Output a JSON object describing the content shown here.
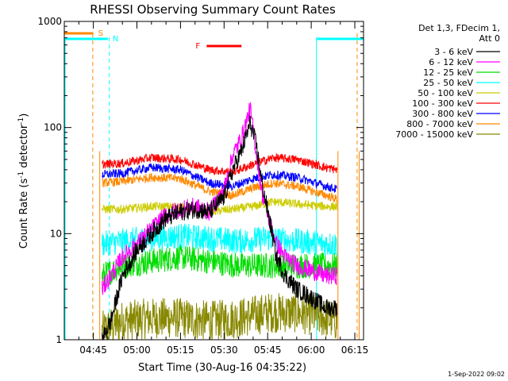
{
  "chart_data": {
    "type": "line",
    "title": "RHESSI Observing Summary Count Rates",
    "xlabel": "Start Time (30-Aug-16 04:35:22)",
    "ylabel": "Count Rate (s⁻¹ detector⁻¹)",
    "ylabel_main": "Count Rate (s",
    "ylabel_sup1": "-1",
    "ylabel_mid": " detector",
    "ylabel_sup2": "-1",
    "ylabel_end": ")",
    "yscale": "log",
    "ylim": [
      1,
      1000
    ],
    "xlim_minutes": [
      0,
      103
    ],
    "x_ticks": [
      {
        "t": 10,
        "label": "04:45"
      },
      {
        "t": 25,
        "label": "05:00"
      },
      {
        "t": 40,
        "label": "05:15"
      },
      {
        "t": 55,
        "label": "05:30"
      },
      {
        "t": 70,
        "label": "05:45"
      },
      {
        "t": 85,
        "label": "06:00"
      },
      {
        "t": 100,
        "label": "06:15"
      }
    ],
    "y_ticks": [
      {
        "v": 1,
        "label": "1"
      },
      {
        "v": 10,
        "label": "10"
      },
      {
        "v": 100,
        "label": "100"
      },
      {
        "v": 1000,
        "label": "1000"
      }
    ],
    "legend_header": [
      "Det 1,3, FDecim 1,",
      "Att 0"
    ],
    "series": [
      {
        "name": "3 - 6 keV",
        "color": "#000000",
        "values": [
          [
            13,
            1
          ],
          [
            16,
            1.5
          ],
          [
            20,
            4
          ],
          [
            25,
            7
          ],
          [
            30,
            10
          ],
          [
            35,
            14
          ],
          [
            40,
            16
          ],
          [
            45,
            17
          ],
          [
            50,
            16
          ],
          [
            55,
            22
          ],
          [
            58,
            40
          ],
          [
            61,
            60
          ],
          [
            64,
            110
          ],
          [
            66,
            70
          ],
          [
            68,
            30
          ],
          [
            71,
            12
          ],
          [
            73,
            6
          ],
          [
            76,
            4
          ],
          [
            80,
            3
          ],
          [
            85,
            2.5
          ],
          [
            90,
            2
          ],
          [
            94,
            2
          ]
        ]
      },
      {
        "name": "6 - 12 keV",
        "color": "#ff00ff",
        "values": [
          [
            13,
            3
          ],
          [
            16,
            4
          ],
          [
            20,
            6
          ],
          [
            25,
            8
          ],
          [
            30,
            11
          ],
          [
            35,
            15
          ],
          [
            40,
            17
          ],
          [
            45,
            18
          ],
          [
            50,
            16
          ],
          [
            55,
            26
          ],
          [
            58,
            55
          ],
          [
            61,
            80
          ],
          [
            64,
            150
          ],
          [
            66,
            60
          ],
          [
            68,
            25
          ],
          [
            71,
            12
          ],
          [
            73,
            8
          ],
          [
            76,
            6
          ],
          [
            80,
            5
          ],
          [
            85,
            4.5
          ],
          [
            90,
            4
          ],
          [
            94,
            4
          ]
        ]
      },
      {
        "name": "12 - 25 keV",
        "color": "#00dd00",
        "values": [
          [
            13,
            4
          ],
          [
            20,
            5
          ],
          [
            30,
            5.5
          ],
          [
            40,
            6
          ],
          [
            50,
            5.5
          ],
          [
            60,
            5
          ],
          [
            70,
            5
          ],
          [
            80,
            5
          ],
          [
            90,
            5
          ],
          [
            94,
            5
          ]
        ]
      },
      {
        "name": "25 - 50 keV",
        "color": "#00ffff",
        "values": [
          [
            13,
            8
          ],
          [
            20,
            8.5
          ],
          [
            30,
            9
          ],
          [
            40,
            9.5
          ],
          [
            50,
            9
          ],
          [
            60,
            8.5
          ],
          [
            70,
            9
          ],
          [
            80,
            8.5
          ],
          [
            90,
            8
          ],
          [
            94,
            8
          ]
        ]
      },
      {
        "name": "50 - 100 keV",
        "color": "#cccc00",
        "values": [
          [
            13,
            17
          ],
          [
            20,
            17
          ],
          [
            30,
            18
          ],
          [
            40,
            18
          ],
          [
            50,
            16
          ],
          [
            58,
            17
          ],
          [
            65,
            18
          ],
          [
            72,
            20
          ],
          [
            80,
            19
          ],
          [
            90,
            18
          ],
          [
            94,
            18
          ]
        ]
      },
      {
        "name": "100 - 300 keV",
        "color": "#ff0000",
        "values": [
          [
            13,
            45
          ],
          [
            20,
            46
          ],
          [
            30,
            52
          ],
          [
            40,
            50
          ],
          [
            50,
            40
          ],
          [
            58,
            38
          ],
          [
            65,
            45
          ],
          [
            72,
            52
          ],
          [
            80,
            50
          ],
          [
            90,
            42
          ],
          [
            94,
            40
          ]
        ]
      },
      {
        "name": "300 - 800 keV",
        "color": "#0000ff",
        "values": [
          [
            13,
            36
          ],
          [
            20,
            37
          ],
          [
            30,
            42
          ],
          [
            40,
            40
          ],
          [
            50,
            30
          ],
          [
            58,
            28
          ],
          [
            65,
            33
          ],
          [
            72,
            36
          ],
          [
            80,
            34
          ],
          [
            90,
            28
          ],
          [
            94,
            26
          ]
        ]
      },
      {
        "name": "800 - 7000 keV",
        "color": "#ff8800",
        "values": [
          [
            13,
            30
          ],
          [
            20,
            31
          ],
          [
            30,
            34
          ],
          [
            40,
            33
          ],
          [
            50,
            25
          ],
          [
            58,
            23
          ],
          [
            65,
            27
          ],
          [
            72,
            30
          ],
          [
            80,
            28
          ],
          [
            90,
            23
          ],
          [
            94,
            21
          ]
        ]
      },
      {
        "name": "7000 - 15000 keV",
        "color": "#888800",
        "values": [
          [
            13,
            1.2
          ],
          [
            20,
            1.5
          ],
          [
            30,
            1.6
          ],
          [
            40,
            1.6
          ],
          [
            50,
            1.5
          ],
          [
            60,
            1.6
          ],
          [
            70,
            1.8
          ],
          [
            80,
            1.8
          ],
          [
            90,
            1.6
          ],
          [
            94,
            1.5
          ]
        ]
      }
    ],
    "markers": {
      "saa_label": "S",
      "night_label": "N",
      "flare_label": "F",
      "saa_bar_t": [
        0,
        10
      ],
      "night_bar_t": [
        [
          0,
          15
        ],
        [
          87,
          103
        ]
      ],
      "flare_bar_t": [
        49,
        61
      ],
      "saa_lines_t": [
        9.8,
        100.8
      ],
      "night_lines_t": [
        15.5,
        86.8
      ],
      "data_edges_t": [
        12.2,
        94.2,
        101.5
      ],
      "night_color": "#00ffff",
      "saa_color": "#ff8800",
      "flare_color": "#ff0000"
    }
  },
  "footer_date": "1-Sep-2022 09:02"
}
